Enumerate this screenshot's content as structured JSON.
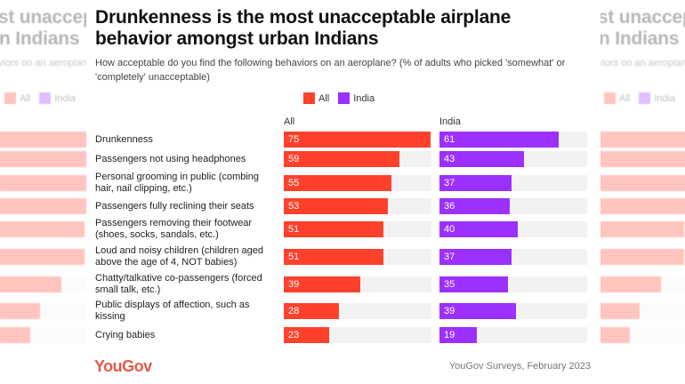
{
  "title": "Drunkenness is the most unacceptable airplane behavior amongst urban Indians",
  "subtitle": "How acceptable do you find the following behaviors on an aeroplane? (% of adults who picked 'somewhat' or 'completely' unacceptable)",
  "footer": {
    "logo": "YouGov",
    "source": "YouGov Surveys, February 2023"
  },
  "colors": {
    "All": "#ff412c",
    "India": "#9b30ff",
    "track": "#f2f2f2"
  },
  "chart_data": {
    "type": "bar",
    "orientation": "horizontal",
    "layout": "small-multiples",
    "legend": "top-center",
    "xlim": [
      0,
      75
    ],
    "categories": [
      "Drunkenness",
      "Passengers not using headphones",
      "Personal grooming in public (combing hair, nail clipping, etc.)",
      "Passengers fully reclining their seats",
      "Passengers removing their footwear (shoes, socks, sandals, etc.)",
      "Loud and noisy children (children aged above the age of 4, NOT babies)",
      "Chatty/talkative co-passengers (forced small talk, etc.)",
      "Public displays of affection, such as kissing",
      "Crying babies"
    ],
    "series": [
      {
        "name": "All",
        "values": [
          75,
          59,
          55,
          53,
          51,
          51,
          39,
          28,
          23
        ]
      },
      {
        "name": "India",
        "values": [
          61,
          43,
          37,
          36,
          40,
          37,
          35,
          39,
          19
        ]
      }
    ]
  }
}
